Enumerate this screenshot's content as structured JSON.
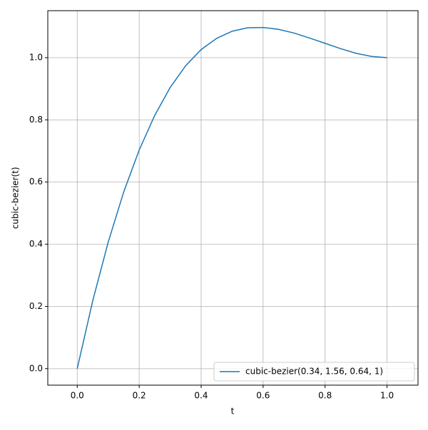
{
  "chart_data": {
    "type": "line",
    "x_label": "t",
    "y_label": "cubic-bezier(t)",
    "x": [
      0,
      0.05,
      0.1,
      0.15,
      0.2,
      0.25,
      0.3,
      0.35,
      0.4,
      0.45,
      0.5,
      0.55,
      0.6,
      0.65,
      0.7,
      0.75,
      0.8,
      0.85,
      0.9,
      0.95,
      1
    ],
    "series": [
      {
        "name": "cubic-bezier(0.34, 1.56, 0.64, 1)",
        "color": "#1f77b4",
        "values": [
          0,
          0.218,
          0.407,
          0.568,
          0.703,
          0.814,
          0.904,
          0.974,
          1.026,
          1.062,
          1.085,
          1.096,
          1.097,
          1.091,
          1.079,
          1.063,
          1.046,
          1.029,
          1.014,
          1.004,
          1.0
        ]
      }
    ],
    "xlim": [
      -0.095,
      1.1
    ],
    "ylim": [
      -0.053,
      1.151
    ],
    "xticks": [
      {
        "value": 0,
        "label": "0.0"
      },
      {
        "value": 0.2,
        "label": "0.2"
      },
      {
        "value": 0.4,
        "label": "0.4"
      },
      {
        "value": 0.6,
        "label": "0.6"
      },
      {
        "value": 0.8,
        "label": "0.8"
      },
      {
        "value": 1,
        "label": "1.0"
      }
    ],
    "yticks": [
      {
        "value": 0,
        "label": "0.0"
      },
      {
        "value": 0.2,
        "label": "0.2"
      },
      {
        "value": 0.4,
        "label": "0.4"
      },
      {
        "value": 0.6,
        "label": "0.6"
      },
      {
        "value": 0.8,
        "label": "0.8"
      },
      {
        "value": 1,
        "label": "1.0"
      }
    ],
    "grid": true,
    "legend": "lower right"
  }
}
